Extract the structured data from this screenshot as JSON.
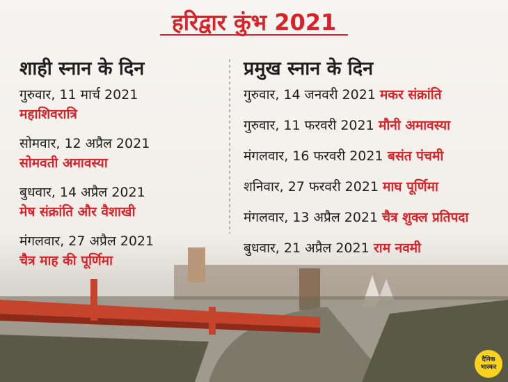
{
  "title": "हरिद्वार कुंभ 2021",
  "left": {
    "heading": "शाही स्नान के दिन",
    "items": [
      {
        "date": "गुरुवार, 11 मार्च 2021",
        "name": "महाशिवरात्रि"
      },
      {
        "date": "सोमवार, 12 अप्रैल 2021",
        "name": "सोमवती अमावस्या"
      },
      {
        "date": "बुधवार, 14 अप्रैल 2021",
        "name": "मेष संक्रांति और वैशाखी"
      },
      {
        "date": "मंगलवार, 27 अप्रैल 2021",
        "name": "चैत्र माह की पूर्णिमा"
      }
    ]
  },
  "right": {
    "heading": "प्रमुख स्नान के दिन",
    "items": [
      {
        "date": "गुरुवार, 14 जनवरी 2021",
        "name": "मकर संक्रांति"
      },
      {
        "date": "गुरुवार, 11 फरवरी 2021",
        "name": "मौनी अमावस्या"
      },
      {
        "date": "मंगलवार, 16 फरवरी 2021",
        "name": "बसंत पंचमी"
      },
      {
        "date": "शनिवार, 27 फरवरी 2021",
        "name": "माघ पूर्णिमा"
      },
      {
        "date": "मंगलवार, 13 अप्रैल 2021",
        "name": "चैत्र शुक्ल प्रतिपदा"
      },
      {
        "date": "बुधवार, 21 अप्रैल 2021",
        "name": "राम नवमी"
      }
    ]
  },
  "logo": [
    "दैनिक",
    "भास्कर"
  ]
}
